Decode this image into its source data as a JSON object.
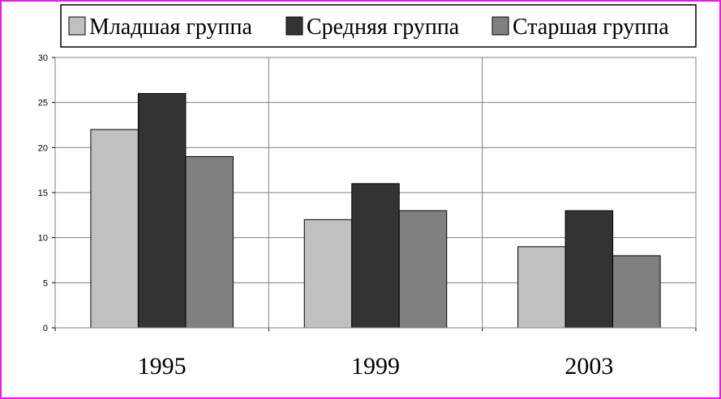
{
  "chart_data": {
    "type": "bar",
    "title": "",
    "xlabel": "",
    "ylabel": "",
    "categories": [
      "1995",
      "1999",
      "2003"
    ],
    "series": [
      {
        "name": "Младшая группа",
        "values": [
          22,
          12,
          9
        ],
        "color": "#c0c0c0"
      },
      {
        "name": "Средняя группа",
        "values": [
          26,
          16,
          13
        ],
        "color": "#333333"
      },
      {
        "name": "Старшая группа",
        "values": [
          19,
          13,
          8
        ],
        "color": "#808080"
      }
    ],
    "ylim": [
      0,
      30
    ],
    "yticks": [
      0,
      5,
      10,
      15,
      20,
      25,
      30
    ],
    "grid": true,
    "legend_position": "top"
  }
}
